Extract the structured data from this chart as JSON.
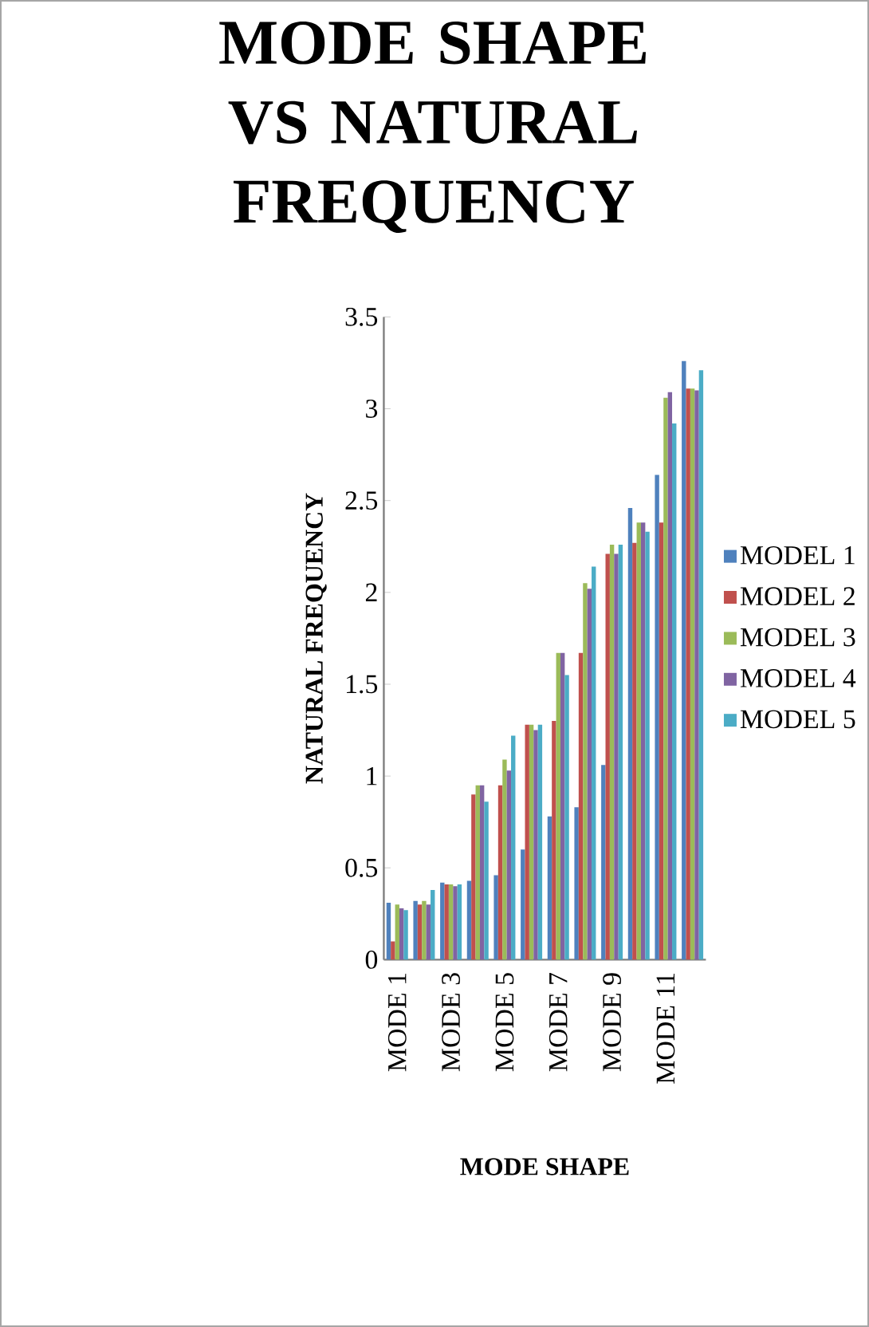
{
  "chart_data": {
    "type": "bar",
    "title": "MODE SHAPE VS NATURAL FREQUENCY",
    "xlabel": "MODE SHAPE",
    "ylabel": "NATURAL FREQUENCY",
    "categories": [
      "MODE 1",
      null,
      "MODE 3",
      null,
      "MODE 5",
      null,
      "MODE 7",
      null,
      "MODE 9",
      null,
      "MODE 11",
      null
    ],
    "series": [
      {
        "name": "MODEL 1",
        "color": "#4f81bd",
        "values": [
          0.31,
          0.32,
          0.42,
          0.43,
          0.46,
          0.6,
          0.78,
          0.83,
          1.06,
          2.46,
          2.64,
          3.26
        ]
      },
      {
        "name": "MODEL 2",
        "color": "#c0504d",
        "values": [
          0.1,
          0.3,
          0.41,
          0.9,
          0.95,
          1.28,
          1.3,
          1.67,
          2.21,
          2.27,
          2.38,
          3.11
        ]
      },
      {
        "name": "MODEL 3",
        "color": "#9bbb59",
        "values": [
          0.3,
          0.32,
          0.41,
          0.95,
          1.09,
          1.28,
          1.67,
          2.05,
          2.26,
          2.38,
          3.06,
          3.11
        ]
      },
      {
        "name": "MODEL 4",
        "color": "#8064a2",
        "values": [
          0.28,
          0.3,
          0.4,
          0.95,
          1.03,
          1.25,
          1.67,
          2.02,
          2.21,
          2.38,
          3.09,
          3.1
        ]
      },
      {
        "name": "MODEL 5",
        "color": "#4bacc6",
        "values": [
          0.27,
          0.38,
          0.41,
          0.86,
          1.22,
          1.28,
          1.55,
          2.14,
          2.26,
          2.33,
          2.92,
          3.21
        ]
      }
    ],
    "ylim": [
      0,
      3.5
    ],
    "yticks": [
      0,
      0.5,
      1,
      1.5,
      2,
      2.5,
      3,
      3.5
    ],
    "grid": false,
    "legend": "right"
  }
}
